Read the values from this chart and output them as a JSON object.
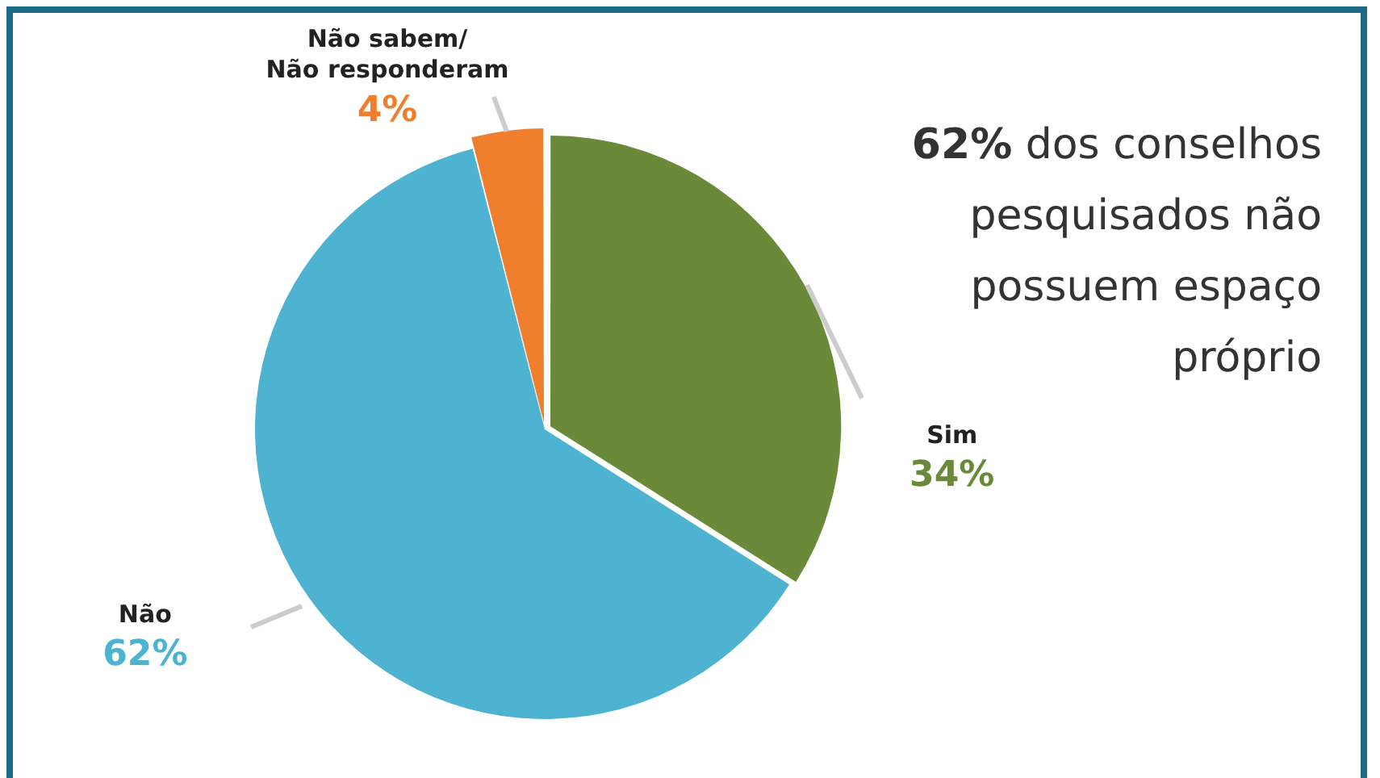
{
  "chart_data": {
    "type": "pie",
    "categories": [
      "Sim",
      "Não",
      "Não sabem/\nNão responderam"
    ],
    "values": [
      34,
      62,
      4
    ],
    "colors": [
      "#6a8a3a",
      "#4db3d1",
      "#ef7f2d"
    ],
    "value_labels": [
      "34%",
      "62%",
      "4%"
    ],
    "annotations": [
      "62% dos conselhos pesquisados não possuem espaço próprio"
    ]
  }
}
